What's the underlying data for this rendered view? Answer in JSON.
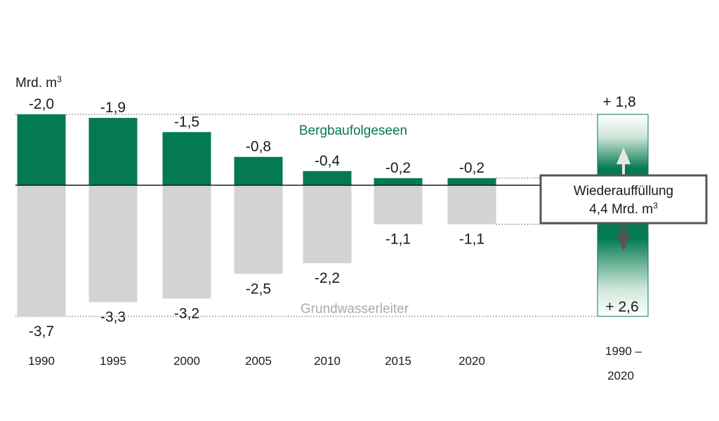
{
  "chart_data": {
    "type": "bar",
    "unit_label": "Mrd. m",
    "unit_sup": "3",
    "categories": [
      "1990",
      "1995",
      "2000",
      "2005",
      "2010",
      "2015",
      "2020"
    ],
    "series": [
      {
        "name": "Bergbaufolgeseen",
        "values": [
          -2.0,
          -1.9,
          -1.5,
          -0.8,
          -0.4,
          -0.2,
          -0.2
        ],
        "labels": [
          "-2,0",
          "-1,9",
          "-1,5",
          "-0,8",
          "-0,4",
          "-0,2",
          "-0,2"
        ],
        "color": "#047a50"
      },
      {
        "name": "Grundwasserleiter",
        "values": [
          -3.7,
          -3.3,
          -3.2,
          -2.5,
          -2.2,
          -1.1,
          -1.1
        ],
        "labels": [
          "-3,7",
          "-3,3",
          "-3,2",
          "-2,5",
          "-2,2",
          "-1,1",
          "-1,1"
        ],
        "color": "#d3d3d3"
      }
    ],
    "summary": {
      "period": "1990–2020",
      "period_line1": "1990 –",
      "period_line2": "2020",
      "up_value": 1.8,
      "up_label": "+ 1,8",
      "down_value": 2.6,
      "down_label": "+ 2,6",
      "box_line1": "Wiederauffüllung",
      "box_line2": "4,4 Mrd. m",
      "box_sup": "3",
      "color": "#047a50"
    }
  }
}
